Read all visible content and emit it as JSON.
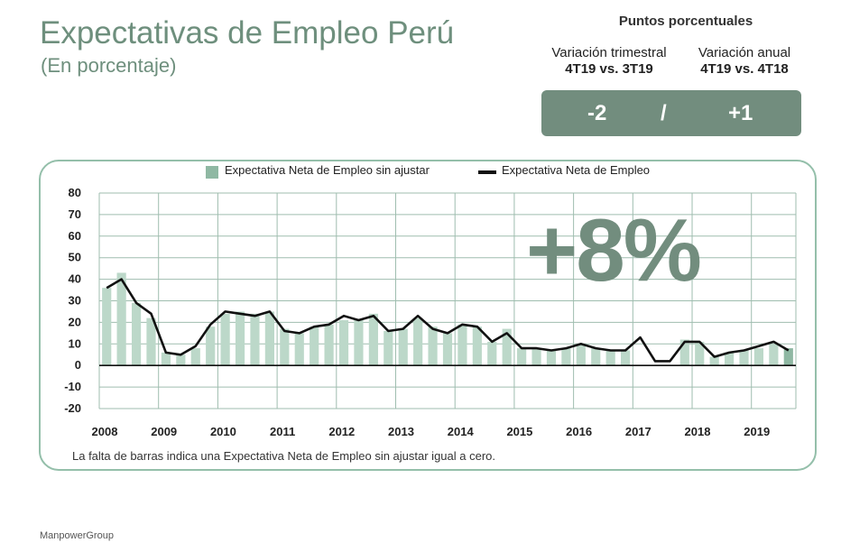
{
  "header": {
    "title": "Expectativas de Empleo Perú",
    "subtitle": "(En porcentaje)"
  },
  "points_panel": {
    "heading": "Puntos porcentuales",
    "quarterly_label": "Variación trimestral",
    "quarterly_compare": "4T19 vs. 3T19",
    "annual_label": "Variación anual",
    "annual_compare": "4T19 vs. 4T18",
    "quarterly_value": "-2",
    "separator": "/",
    "annual_value": "+1"
  },
  "big_value": "+8%",
  "footnote": "La falta de barras indica una Expectativa Neta de Empleo sin ajustar igual a cero.",
  "brand": "ManpowerGroup",
  "colors": {
    "accent": "#728d7e",
    "bar": "#bcd8c9",
    "bar_latest": "#8fb8a3",
    "line": "#111111",
    "frame": "#94bfaa"
  },
  "chart_data": {
    "type": "bar+line",
    "legend": [
      "Expectativa Neta de Empleo sin ajustar",
      "Expectativa Neta de Empleo"
    ],
    "legend_position": "top",
    "ylim": [
      -20,
      80
    ],
    "yticks": [
      "80",
      "70",
      "60",
      "50",
      "40",
      "30",
      "20",
      "10",
      "0",
      "-10",
      "-20"
    ],
    "year_labels": [
      "2008",
      "2009",
      "2010",
      "2011",
      "2012",
      "2013",
      "2014",
      "2015",
      "2016",
      "2017",
      "2018",
      "2019"
    ],
    "grid": true,
    "series": [
      {
        "name": "Expectativa Neta de Empleo sin ajustar",
        "type": "bar",
        "values": [
          36,
          43,
          29,
          22,
          6,
          5,
          8,
          18,
          24,
          25,
          24,
          25,
          17,
          15,
          18,
          19,
          21,
          21,
          24,
          16,
          17,
          22,
          18,
          15,
          19,
          18,
          11,
          17,
          8,
          8,
          7,
          8,
          10,
          8,
          7,
          7,
          0,
          0,
          0,
          12,
          11,
          4,
          6,
          7,
          8,
          10,
          8
        ]
      },
      {
        "name": "Expectativa Neta de Empleo",
        "type": "line",
        "values": [
          36,
          40,
          29,
          24,
          6,
          5,
          9,
          19,
          25,
          24,
          23,
          25,
          16,
          15,
          18,
          19,
          23,
          21,
          23,
          16,
          17,
          23,
          17,
          15,
          19,
          18,
          11,
          15,
          8,
          8,
          7,
          8,
          10,
          8,
          7,
          7,
          13,
          2,
          2,
          11,
          11,
          4,
          6,
          7,
          9,
          11,
          7
        ]
      }
    ]
  }
}
